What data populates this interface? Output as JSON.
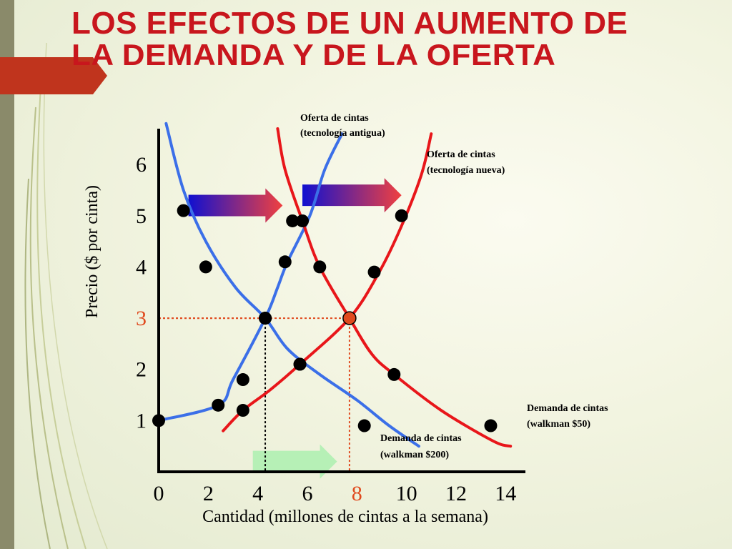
{
  "title": {
    "line1": "LOS EFECTOS DE UN AUMENTO DE",
    "line2": "LA DEMANDA Y DE LA OFERTA"
  },
  "colors": {
    "title": "#c8161d",
    "old_curves": "#3b6fe8",
    "new_curves": "#e8161a",
    "dashed_equilibrium_new": "#e04a1e",
    "dashed_equilibrium_old": "#000000",
    "highlight": "#e04a1e",
    "green_arrow": "#b6f0b6"
  },
  "chart_data": {
    "type": "line",
    "xlabel": "Cantidad (millones de cintas a la semana)",
    "ylabel": "Precio ($ por cinta)",
    "xlim": [
      0,
      14.8
    ],
    "ylim": [
      0,
      6.7
    ],
    "x_ticks": [
      "0",
      "2",
      "4",
      "6",
      "8",
      "10",
      "12",
      "14"
    ],
    "x_tick_values": [
      0,
      2,
      4,
      6,
      8,
      10,
      12,
      14
    ],
    "y_ticks": [
      "1",
      "2",
      "3",
      "4",
      "5",
      "6"
    ],
    "y_tick_values": [
      1,
      2,
      3,
      4,
      5,
      6
    ],
    "highlighted_x_tick": "8",
    "highlighted_y_tick": "3",
    "series": [
      {
        "name": "Oferta de cintas (tecnología antigua)",
        "label_line1": "Oferta de cintas",
        "label_line2": "(tecnología antigua)",
        "color": "blue",
        "kind": "supply",
        "points": [
          [
            0,
            1
          ],
          [
            2.4,
            1.3
          ],
          [
            3,
            1.8
          ],
          [
            4.3,
            3
          ],
          [
            4.8,
            3.6
          ],
          [
            5.2,
            4.1
          ],
          [
            6.1,
            5
          ],
          [
            6.7,
            5.9
          ],
          [
            7.4,
            6.6
          ]
        ],
        "markers": [
          [
            0,
            1
          ],
          [
            2.4,
            1.3
          ],
          [
            3.4,
            1.8
          ],
          [
            4.3,
            3
          ],
          [
            5.1,
            4.1
          ],
          [
            5.8,
            4.9
          ]
        ]
      },
      {
        "name": "Demanda de cintas (walkman $200)",
        "label_line1": "Demanda de cintas",
        "label_line2": "(walkman $200)",
        "color": "blue",
        "kind": "demand",
        "points": [
          [
            0.3,
            6.8
          ],
          [
            1,
            5.5
          ],
          [
            1.9,
            4.5
          ],
          [
            3.1,
            3.6
          ],
          [
            4.3,
            3
          ],
          [
            5.2,
            2.4
          ],
          [
            6.5,
            1.9
          ],
          [
            8,
            1.4
          ],
          [
            9.3,
            0.9
          ],
          [
            10.5,
            0.5
          ]
        ],
        "markers": [
          [
            1,
            5.1
          ],
          [
            1.9,
            4
          ],
          [
            4.3,
            3
          ],
          [
            5.7,
            2.1
          ],
          [
            8.3,
            0.9
          ]
        ]
      },
      {
        "name": "Oferta de cintas (tecnología nueva)",
        "label_line1": "Oferta de cintas",
        "label_line2": "(tecnología nueva)",
        "color": "red",
        "kind": "supply",
        "points": [
          [
            2.6,
            0.8
          ],
          [
            3.4,
            1.2
          ],
          [
            4.5,
            1.6
          ],
          [
            5.7,
            2.1
          ],
          [
            7.7,
            3
          ],
          [
            8.9,
            3.9
          ],
          [
            9.8,
            4.8
          ],
          [
            10.6,
            5.8
          ],
          [
            11,
            6.6
          ]
        ],
        "markers": [
          [
            3.4,
            1.2
          ],
          [
            5.7,
            2.1
          ],
          [
            7.7,
            3
          ],
          [
            8.7,
            3.9
          ],
          [
            9.8,
            5
          ]
        ]
      },
      {
        "name": "Demanda de cintas (walkman $50)",
        "label_line1": "Demanda de cintas",
        "label_line2": "(walkman $50)",
        "color": "red",
        "kind": "demand",
        "points": [
          [
            4.8,
            6.7
          ],
          [
            5.1,
            5.9
          ],
          [
            5.8,
            4.9
          ],
          [
            6.5,
            4
          ],
          [
            7.7,
            3
          ],
          [
            8.6,
            2.3
          ],
          [
            9.5,
            1.9
          ],
          [
            11.4,
            1.2
          ],
          [
            13.5,
            0.6
          ],
          [
            14.2,
            0.5
          ]
        ],
        "markers": [
          [
            5.4,
            4.9
          ],
          [
            6.5,
            4
          ],
          [
            9.5,
            1.9
          ],
          [
            13.4,
            0.9
          ]
        ]
      }
    ],
    "equilibria": [
      {
        "x": 4.3,
        "y": 3,
        "style": "old"
      },
      {
        "x": 7.7,
        "y": 3,
        "style": "new"
      }
    ],
    "annotations": [
      {
        "kind": "shift_arrow",
        "colors": "blue-to-red",
        "from": [
          1.2,
          5.2
        ],
        "to": [
          5,
          5.2
        ]
      },
      {
        "kind": "shift_arrow",
        "colors": "blue-to-red",
        "from": [
          5.8,
          5.4
        ],
        "to": [
          9.8,
          5.4
        ]
      },
      {
        "kind": "shift_arrow",
        "colors": "green",
        "from": [
          3.8,
          0.2
        ],
        "to": [
          7.2,
          0.2
        ]
      }
    ]
  }
}
